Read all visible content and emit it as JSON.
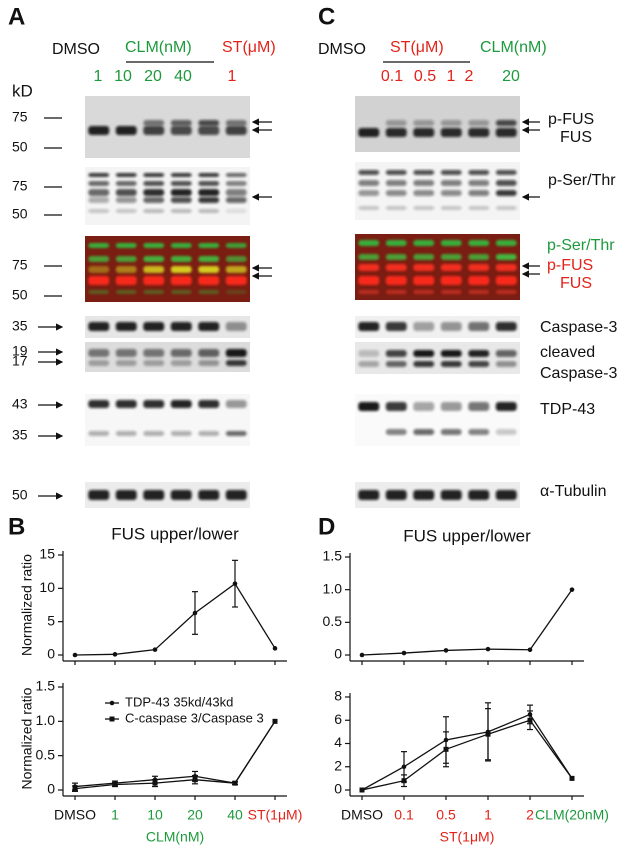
{
  "panel_a": {
    "letter": "A",
    "header": {
      "control": "DMSO",
      "group1": "CLM(nM)",
      "group2": "ST(μM)"
    },
    "lanes": [
      "1",
      "10",
      "20",
      "40",
      "1"
    ],
    "unit": "kD",
    "markers": [
      75,
      50,
      75,
      50,
      75,
      50,
      35,
      19,
      17,
      43,
      35,
      50
    ]
  },
  "panel_c": {
    "letter": "C",
    "header": {
      "control": "DMSO",
      "group1": "ST(μM)",
      "group2": "CLM(nM)"
    },
    "lanes": [
      "0.1",
      "0.5",
      "1",
      "2",
      "20"
    ],
    "labels": [
      "p-FUS",
      "FUS",
      "p-Ser/Thr",
      "p-Ser/Thr",
      "p-FUS",
      "FUS",
      "Caspase-3",
      "cleaved",
      "Caspase-3",
      "TDP-43",
      "α-Tubulin"
    ]
  },
  "panel_b": {
    "letter": "B"
  },
  "panel_d": {
    "letter": "D"
  },
  "chart_data": [
    {
      "type": "line",
      "title": "FUS upper/lower",
      "y_label": "Normalized  ratio",
      "series": [
        {
          "color": "#111111",
          "marker": "circle",
          "values": [
            0,
            0.1,
            0.8,
            6.3,
            10.7,
            1.0
          ],
          "errors": [
            null,
            null,
            null,
            3.2,
            3.5,
            null
          ]
        }
      ],
      "ylim": [
        0,
        15
      ],
      "yticks": [
        0,
        5,
        10,
        15
      ]
    },
    {
      "type": "line",
      "y_label": "Normalized  ratio",
      "x_label": "CLM(nM)",
      "x_label_color": "#1d9a3c",
      "categories": [
        "DMSO",
        "1",
        "10",
        "20",
        "40",
        "ST(1μM)"
      ],
      "category_colors": [
        "#111111",
        "#1d9a3c",
        "#1d9a3c",
        "#1d9a3c",
        "#1d9a3c",
        "#e2231a"
      ],
      "series": [
        {
          "name": "TDP-43 35kd/43kd",
          "color": "#111111",
          "marker": "circle",
          "values": [
            0.05,
            0.1,
            0.15,
            0.2,
            0.1,
            1.0
          ],
          "errors": [
            0.05,
            0.03,
            0.05,
            0.07,
            0.02,
            null
          ]
        },
        {
          "name": "C-caspase 3/Caspase 3",
          "color": "#111111",
          "marker": "square",
          "values": [
            0.02,
            0.08,
            0.1,
            0.15,
            0.1,
            1.0
          ],
          "errors": [
            0.04,
            0.03,
            0.05,
            0.06,
            0.02,
            null
          ]
        }
      ],
      "ylim": [
        0,
        1.5
      ],
      "yticks": [
        0,
        0.5,
        {
          "value": 1,
          "label": "1.0"
        },
        1.5
      ]
    },
    {
      "type": "line",
      "title": "FUS upper/lower",
      "series": [
        {
          "color": "#111111",
          "marker": "circle",
          "values": [
            0,
            0.03,
            0.07,
            0.09,
            0.08,
            1.0
          ],
          "errors": [
            null,
            null,
            null,
            null,
            null,
            null
          ]
        }
      ],
      "ylim": [
        0,
        1.5
      ],
      "yticks": [
        0,
        0.5,
        {
          "value": 1,
          "label": "1.0"
        },
        1.5
      ]
    },
    {
      "type": "line",
      "x_label": "ST(1μM)",
      "x_label_color": "#e2231a",
      "categories": [
        "DMSO",
        "0.1",
        "0.5",
        "1",
        "2",
        "CLM(20nM)"
      ],
      "category_colors": [
        "#111111",
        "#e2231a",
        "#e2231a",
        "#e2231a",
        "#e2231a",
        "#1d9a3c"
      ],
      "series": [
        {
          "color": "#111111",
          "marker": "circle",
          "values": [
            0,
            2,
            4.3,
            5,
            6.5,
            1
          ],
          "errors": [
            null,
            1.3,
            2,
            2.5,
            0.8,
            null
          ]
        },
        {
          "color": "#111111",
          "marker": "square",
          "values": [
            0,
            0.8,
            3.5,
            4.8,
            6,
            1
          ],
          "errors": [
            null,
            0.5,
            1.5,
            2.2,
            0.8,
            null
          ]
        }
      ],
      "ylim": [
        0,
        8
      ],
      "yticks": [
        0,
        2,
        4,
        6,
        8
      ]
    }
  ]
}
